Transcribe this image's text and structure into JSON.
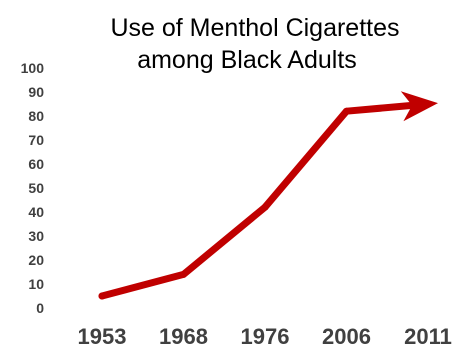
{
  "chart_data": {
    "type": "line",
    "title_lines": [
      "Use of Menthol Cigarettes",
      "among Black Adults"
    ],
    "title": "Use of Menthol Cigarettes among Black Adults",
    "xlabel": "",
    "ylabel": "",
    "categories": [
      "1953",
      "1968",
      "1976",
      "2006",
      "2011"
    ],
    "y_ticks": [
      "100",
      "90",
      "80",
      "70",
      "60",
      "50",
      "40",
      "30",
      "20",
      "10",
      "0"
    ],
    "ylim": [
      0,
      100
    ],
    "grid": false,
    "legend": "none",
    "series": [
      {
        "values": [
          5,
          14,
          42,
          82,
          85
        ],
        "color": "#c00000",
        "end_marker": "arrow"
      }
    ]
  }
}
